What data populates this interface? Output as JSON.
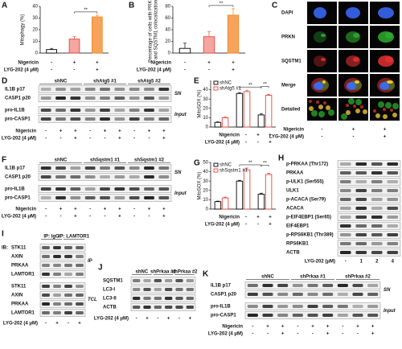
{
  "chart_data": [
    {
      "type": "bar",
      "panel": "A",
      "ylabel": "Mitophagy (%)",
      "values": [
        3,
        12,
        31
      ],
      "errors": [
        1,
        2,
        1.5
      ],
      "colors": [
        "#ffffff",
        "#f4a6a0",
        "#f7a35c"
      ],
      "edgecolors": [
        "#000000",
        "#e8463c",
        "#f08a24"
      ],
      "ylim": [
        0,
        40
      ],
      "yticks": [
        0,
        10,
        20,
        30,
        40
      ],
      "significance": [
        "**"
      ],
      "treatments": [
        {
          "name": "Nigericin",
          "signs": [
            "-",
            "+",
            "+"
          ]
        },
        {
          "name": "LYG-202 (4 μM)",
          "signs": [
            "-",
            "-",
            "+"
          ]
        }
      ]
    },
    {
      "type": "bar",
      "panel": "B",
      "ylabel": [
        "Percentage of cells with PRKN",
        "and SQSTM1 colocalization"
      ],
      "values": [
        8,
        28,
        65
      ],
      "errors": [
        9,
        9,
        11
      ],
      "colors": [
        "#ffffff",
        "#f4a6a0",
        "#f7a35c"
      ],
      "edgecolors": [
        "#000000",
        "#e8463c",
        "#f08a24"
      ],
      "ylim": [
        0,
        80
      ],
      "yticks": [
        0,
        20,
        40,
        60,
        80
      ],
      "significance": [
        "**"
      ],
      "treatments": [
        {
          "name": "Nigericin",
          "signs": [
            "-",
            "+",
            "+"
          ]
        },
        {
          "name": "LYG-202 (4 μM)",
          "signs": [
            "-",
            "-",
            "+"
          ]
        }
      ]
    },
    {
      "type": "grouped_bar",
      "panel": "E",
      "ylabel": "MitoSOX (%)",
      "series": [
        {
          "name": "shNC",
          "color": "#000000",
          "values": [
            5,
            36,
            13
          ],
          "errors": [
            0.5,
            1,
            1.5
          ]
        },
        {
          "name": "shAtg5 #1",
          "color": "#e8463c",
          "values": [
            10,
            38,
            34
          ],
          "errors": [
            0.7,
            1.5,
            1
          ]
        }
      ],
      "ylim": [
        0,
        50
      ],
      "yticks": [
        0,
        10,
        20,
        30,
        40
      ],
      "significance": [
        "**",
        "**"
      ],
      "treatments": [
        {
          "name": "Nigericin",
          "signs": [
            "-",
            "+",
            "+"
          ]
        },
        {
          "name": "LYG-202 (4 μM)",
          "signs": [
            "-",
            "-",
            "+"
          ]
        }
      ]
    },
    {
      "type": "grouped_bar",
      "panel": "G",
      "ylabel": "MitoSOX (%)",
      "series": [
        {
          "name": "shNC",
          "color": "#000000",
          "values": [
            8,
            30,
            16
          ],
          "errors": [
            0.5,
            0.8,
            1
          ]
        },
        {
          "name": "shSqstm1 #1",
          "color": "#e8463c",
          "values": [
            12,
            42,
            37
          ],
          "errors": [
            0.8,
            2,
            1.5
          ]
        }
      ],
      "ylim": [
        0,
        50
      ],
      "yticks": [
        0,
        10,
        20,
        30,
        40,
        50
      ],
      "significance": [
        "**",
        "**"
      ],
      "treatments": [
        {
          "name": "Nigericin",
          "signs": [
            "-",
            "+",
            "+"
          ]
        },
        {
          "name": "LYG-202 (4 μM)",
          "signs": [
            "-",
            "-",
            "+"
          ]
        }
      ]
    }
  ],
  "image_panel": {
    "panel": "C",
    "channels": [
      {
        "name": "DAPI",
        "color": "#3b6cff"
      },
      {
        "name": "PRKN",
        "color": "#2eaa2e"
      },
      {
        "name": "SQSTM1",
        "color": "#e03030"
      },
      {
        "name": "Merge",
        "color": "#e0a020"
      },
      {
        "name": "Detailed",
        "color": "#333333"
      }
    ],
    "treatments": [
      {
        "name": "Nigericin",
        "signs": [
          "-",
          "+",
          "+"
        ]
      },
      {
        "name": "LYG-202 (4 μM)",
        "signs": [
          "-",
          "-",
          "+"
        ]
      }
    ]
  },
  "blots": [
    {
      "panel": "D",
      "groups": [
        "shNC",
        "shAtg5 #1",
        "shAtg5 #2"
      ],
      "sections": [
        {
          "label": "SN",
          "proteins": [
            "IL1B p17",
            "CASP1 p20"
          ]
        },
        {
          "label": "Input",
          "proteins": [
            "pro-IL1B",
            "pro-CASP1"
          ]
        }
      ],
      "treatments": [
        {
          "name": "Nigericin",
          "signs": [
            "-",
            "+",
            "+",
            "-",
            "+",
            "+",
            "-",
            "+",
            "+"
          ]
        },
        {
          "name": "LYG-202 (4 μM)",
          "signs": [
            "-",
            "-",
            "+",
            "-",
            "-",
            "+",
            "-",
            "-",
            "+"
          ]
        }
      ]
    },
    {
      "panel": "F",
      "groups": [
        "shNC",
        "shSqstm1 #1",
        "shSqstm1 #2"
      ],
      "sections": [
        {
          "label": "SN",
          "proteins": [
            "IL1B p17",
            "CASP1 p20"
          ]
        },
        {
          "label": "Input",
          "proteins": [
            "pro-IL1B",
            "pro-CASP1"
          ]
        }
      ],
      "treatments": [
        {
          "name": "Nigericin",
          "signs": [
            "-",
            "+",
            "+",
            "-",
            "+",
            "+",
            "-",
            "+",
            "+"
          ]
        },
        {
          "name": "LYG-202 (4 μM)",
          "signs": [
            "-",
            "-",
            "+",
            "-",
            "-",
            "+",
            "-",
            "-",
            "+"
          ]
        }
      ]
    },
    {
      "panel": "H",
      "sections": [
        {
          "proteins": [
            "p-PRKAA (Thr172)",
            "PRKAA",
            "p-ULK1 (Ser555)",
            "ULK1",
            "p-ACACA (Ser79)",
            "ACACA",
            "p-EIF4EBP1 (Ser65)",
            "EIF4EBP1",
            "p-RPS6KB1 (Thr389)",
            "RPS6KB1",
            "ACTB"
          ]
        }
      ],
      "treatments": [
        {
          "name": "LYG-202 (μM)",
          "signs": [
            "-",
            "1",
            "2",
            "4"
          ]
        }
      ]
    },
    {
      "panel": "I",
      "groups": [
        "IP: IgG",
        "IP: LAMTOR1"
      ],
      "ib_label": "IB:",
      "sections": [
        {
          "label": "IP",
          "proteins": [
            "STK11",
            "AXIN",
            "PRKAA",
            "LAMTOR1"
          ]
        },
        {
          "label": "TCL",
          "proteins": [
            "STK11",
            "AXIN",
            "PRKAA",
            "LAMTOR1"
          ]
        }
      ],
      "treatments": [
        {
          "name": "LYG-202 (4 μM)",
          "signs": [
            "-",
            "+",
            "-",
            "+"
          ]
        }
      ]
    },
    {
      "panel": "J",
      "groups": [
        "shNC",
        "shPrkaa #1",
        "shPrkaa #2"
      ],
      "sections": [
        {
          "proteins": [
            "SQSTM1",
            "LC3-I",
            "LC3-II",
            "ACTB"
          ]
        }
      ],
      "treatments": [
        {
          "name": "LYG-202 (4 μM)",
          "signs": [
            "-",
            "+",
            "-",
            "+",
            "-",
            "+"
          ]
        }
      ]
    },
    {
      "panel": "K",
      "groups": [
        "shNC",
        "shPrkaa #1",
        "shPrkaa #2"
      ],
      "sections": [
        {
          "label": "SN",
          "proteins": [
            "IL1B p17",
            "CASP1 p20"
          ]
        },
        {
          "label": "Input",
          "proteins": [
            "pro-IL1B",
            "pro-CASP1"
          ]
        }
      ],
      "treatments": [
        {
          "name": "Nigericin",
          "signs": [
            "-",
            "+",
            "+",
            "-",
            "+",
            "+",
            "-",
            "+",
            "+"
          ]
        },
        {
          "name": "LYG-202 (4 μM)",
          "signs": [
            "-",
            "-",
            "+",
            "-",
            "-",
            "+",
            "-",
            "-",
            "+"
          ]
        }
      ]
    }
  ]
}
